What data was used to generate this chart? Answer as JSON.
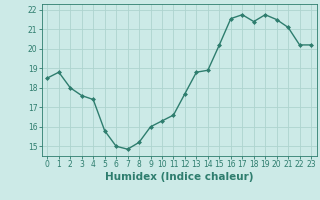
{
  "x": [
    0,
    1,
    2,
    3,
    4,
    5,
    6,
    7,
    8,
    9,
    10,
    11,
    12,
    13,
    14,
    15,
    16,
    17,
    18,
    19,
    20,
    21,
    22,
    23
  ],
  "y": [
    18.5,
    18.8,
    18.0,
    17.6,
    17.4,
    15.8,
    15.0,
    14.85,
    15.2,
    16.0,
    16.3,
    16.6,
    17.7,
    18.8,
    18.9,
    20.2,
    21.55,
    21.75,
    21.4,
    21.75,
    21.5,
    21.1,
    20.2,
    20.2
  ],
  "line_color": "#2e7d6e",
  "marker": "D",
  "marker_size": 2.0,
  "bg_color": "#cceae7",
  "grid_color": "#aed4cf",
  "xlabel": "Humidex (Indice chaleur)",
  "xlim": [
    -0.5,
    23.5
  ],
  "ylim": [
    14.5,
    22.3
  ],
  "yticks": [
    15,
    16,
    17,
    18,
    19,
    20,
    21,
    22
  ],
  "xticks": [
    0,
    1,
    2,
    3,
    4,
    5,
    6,
    7,
    8,
    9,
    10,
    11,
    12,
    13,
    14,
    15,
    16,
    17,
    18,
    19,
    20,
    21,
    22,
    23
  ],
  "tick_label_fontsize": 5.5,
  "xlabel_fontsize": 7.5,
  "line_width": 1.0,
  "spine_color": "#2e7d6e"
}
